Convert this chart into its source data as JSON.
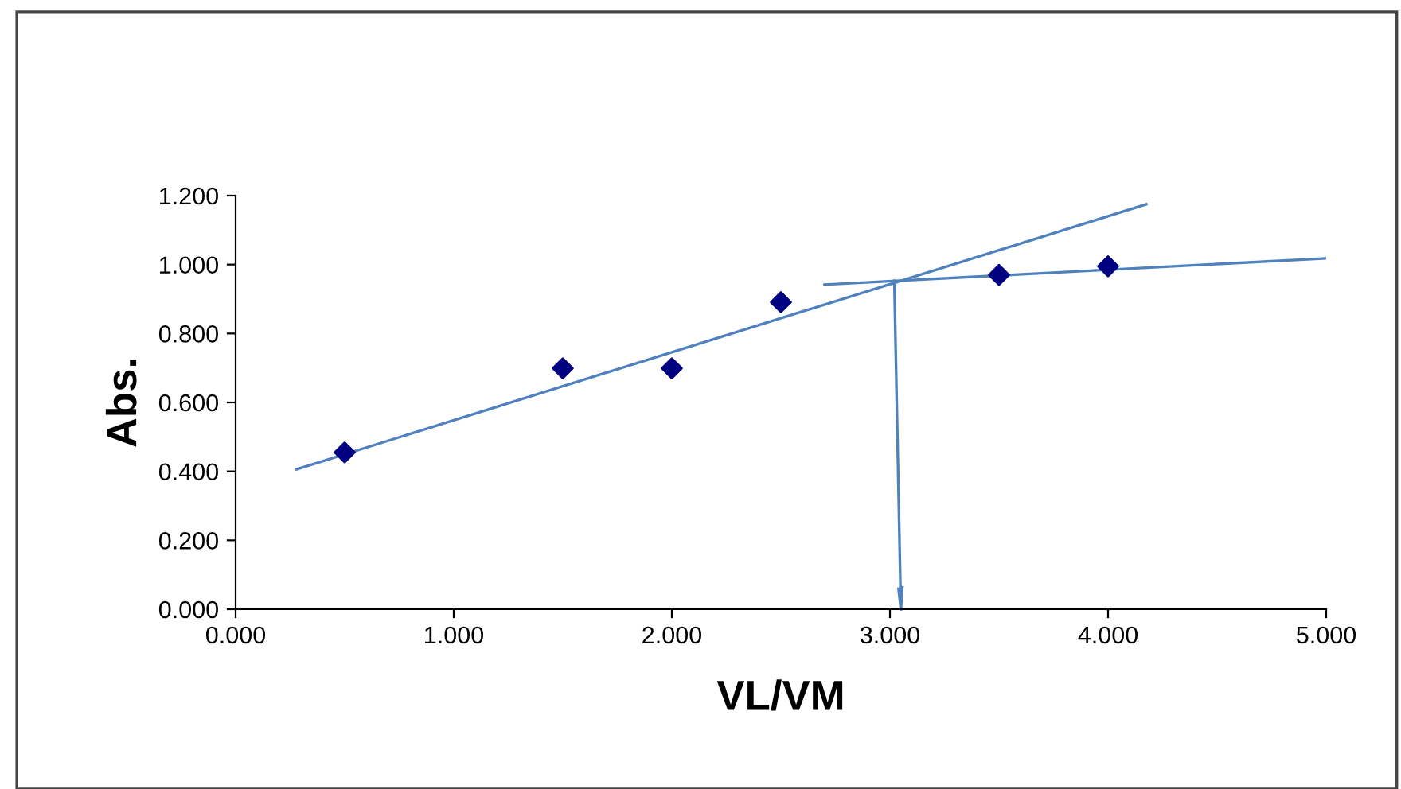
{
  "chart_data": {
    "type": "line",
    "xlabel": "VL/VM",
    "ylabel": "Abs.",
    "series": [
      {
        "type": "scatter",
        "color": "#000080",
        "marker": "diamond",
        "x": [
          0.5,
          1.5,
          2.0,
          2.5,
          3.5,
          4.0
        ],
        "values": [
          0.455,
          0.699,
          0.699,
          0.891,
          0.97,
          0.995
        ]
      },
      {
        "color": "#4f81bd",
        "marker": "none",
        "x": [
          0.279,
          4.175
        ],
        "values": [
          0.406,
          1.175
        ]
      },
      {
        "color": "#4f81bd",
        "marker": "none",
        "x": [
          2.7,
          5.0
        ],
        "values": [
          0.942,
          1.018
        ]
      },
      {
        "color": "#4f81bd",
        "marker": "none",
        "x": [
          3.02,
          3.05
        ],
        "values": [
          0.953,
          0.0
        ]
      }
    ],
    "xlim": [
      0,
      5
    ],
    "ylim": [
      0,
      1.2
    ],
    "xticks": [
      {
        "value": 0,
        "label": "0.000"
      },
      {
        "value": 1,
        "label": "1.000"
      },
      {
        "value": 2,
        "label": "2.000"
      },
      {
        "value": 3,
        "label": "3.000"
      },
      {
        "value": 4,
        "label": "4.000"
      },
      {
        "value": 5,
        "label": "5.000"
      }
    ],
    "yticks": [
      {
        "value": 0,
        "label": "0.000"
      },
      {
        "value": 0.2,
        "label": "0.200"
      },
      {
        "value": 0.4,
        "label": "0.400"
      },
      {
        "value": 0.6,
        "label": "0.600"
      },
      {
        "value": 0.8,
        "label": "0.800"
      },
      {
        "value": 1.0,
        "label": "1.000"
      },
      {
        "value": 1.2,
        "label": "1.200"
      }
    ],
    "grid": false,
    "legend": false
  }
}
